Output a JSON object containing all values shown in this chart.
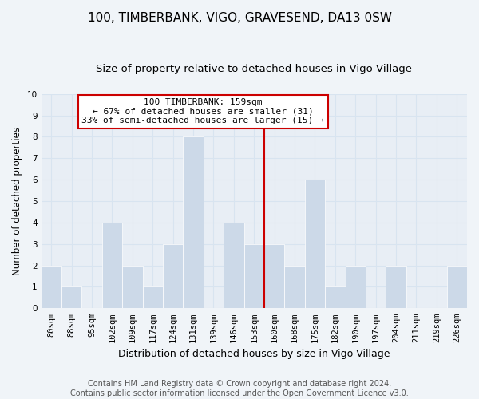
{
  "title": "100, TIMBERBANK, VIGO, GRAVESEND, DA13 0SW",
  "subtitle": "Size of property relative to detached houses in Vigo Village",
  "xlabel": "Distribution of detached houses by size in Vigo Village",
  "ylabel": "Number of detached properties",
  "bar_labels": [
    "80sqm",
    "88sqm",
    "95sqm",
    "102sqm",
    "109sqm",
    "117sqm",
    "124sqm",
    "131sqm",
    "139sqm",
    "146sqm",
    "153sqm",
    "160sqm",
    "168sqm",
    "175sqm",
    "182sqm",
    "190sqm",
    "197sqm",
    "204sqm",
    "211sqm",
    "219sqm",
    "226sqm"
  ],
  "bar_values": [
    2,
    1,
    0,
    4,
    2,
    1,
    3,
    8,
    0,
    4,
    3,
    3,
    2,
    6,
    1,
    2,
    0,
    2,
    0,
    0,
    2
  ],
  "bar_color": "#ccd9e8",
  "grid_color": "#d8e4f0",
  "bg_color": "#e8eef5",
  "fig_bg_color": "#f0f4f8",
  "ylim": [
    0,
    10
  ],
  "yticks": [
    0,
    1,
    2,
    3,
    4,
    5,
    6,
    7,
    8,
    9,
    10
  ],
  "ref_line_index": 11,
  "annotation_title": "100 TIMBERBANK: 159sqm",
  "annotation_line1": "← 67% of detached houses are smaller (31)",
  "annotation_line2": "33% of semi-detached houses are larger (15) →",
  "annotation_box_color": "#ffffff",
  "annotation_box_edge": "#cc0000",
  "ref_line_color": "#cc0000",
  "footer_line1": "Contains HM Land Registry data © Crown copyright and database right 2024.",
  "footer_line2": "Contains public sector information licensed under the Open Government Licence v3.0.",
  "title_fontsize": 11,
  "subtitle_fontsize": 9.5,
  "xlabel_fontsize": 9,
  "ylabel_fontsize": 8.5,
  "tick_fontsize": 7.5,
  "annot_fontsize": 8,
  "footer_fontsize": 7
}
